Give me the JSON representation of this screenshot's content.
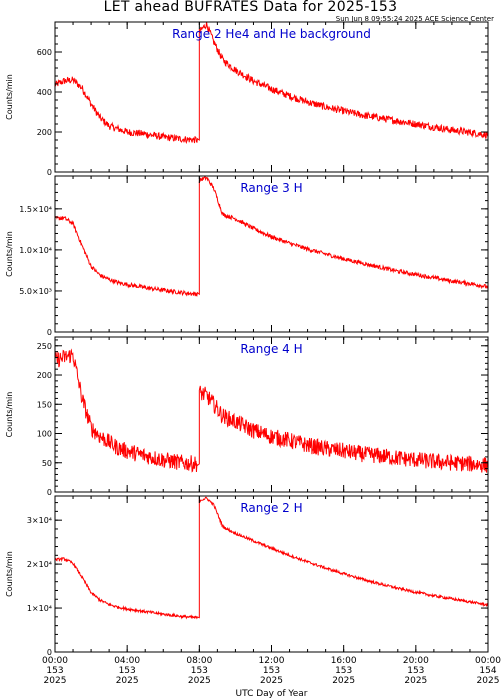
{
  "title": "LET ahead BUFRATES Data for 2025-153",
  "timestamp": "Sun Jun  8 09:55:24 2025 ACE Science Center",
  "colors": {
    "trace": "#ff0000",
    "panel_label": "#0000cc",
    "axis": "#000000"
  },
  "chart_data": {
    "type": "line",
    "xlabel": "UTC Day of Year",
    "x_range_hours": [
      0,
      24
    ],
    "x_ticks": [
      {
        "hour": 0,
        "time": "00:00",
        "doy": "153",
        "year": "2025"
      },
      {
        "hour": 4,
        "time": "04:00",
        "doy": "153",
        "year": "2025"
      },
      {
        "hour": 8,
        "time": "08:00",
        "doy": "153",
        "year": "2025"
      },
      {
        "hour": 12,
        "time": "12:00",
        "doy": "153",
        "year": "2025"
      },
      {
        "hour": 16,
        "time": "16:00",
        "doy": "153",
        "year": "2025"
      },
      {
        "hour": 20,
        "time": "20:00",
        "doy": "153",
        "year": "2025"
      },
      {
        "hour": 24,
        "time": "00:00",
        "doy": "154",
        "year": "2025"
      }
    ],
    "panels": [
      {
        "label": "Range 2 He4 and He background",
        "ylabel": "Counts/min",
        "ylim": [
          0,
          750
        ],
        "yticks": [
          {
            "value": 0,
            "label": "0"
          },
          {
            "value": 200,
            "label": "200"
          },
          {
            "value": 400,
            "label": "400"
          },
          {
            "value": 600,
            "label": "600"
          }
        ],
        "series": {
          "x": [
            0,
            0.5,
            1,
            1.5,
            2,
            2.5,
            3,
            3.5,
            4,
            5,
            6,
            7,
            7.9,
            8.0,
            8.4,
            8.8,
            9.3,
            10,
            11,
            12,
            13,
            14,
            15,
            16,
            17,
            18,
            19,
            20,
            21,
            22,
            23,
            24
          ],
          "y": [
            435,
            455,
            460,
            420,
            340,
            270,
            230,
            215,
            200,
            190,
            175,
            165,
            160,
            700,
            740,
            650,
            560,
            510,
            455,
            415,
            380,
            350,
            325,
            305,
            285,
            270,
            255,
            240,
            225,
            210,
            198,
            185
          ],
          "noise": 18
        }
      },
      {
        "label": "Range 3 H",
        "ylabel": "Counts/min",
        "ylim": [
          0,
          19000
        ],
        "yticks": [
          {
            "value": 0,
            "label": "0"
          },
          {
            "value": 5000,
            "label": "5.0×10³"
          },
          {
            "value": 10000,
            "label": "1.0×10⁴"
          },
          {
            "value": 15000,
            "label": "1.5×10⁴"
          }
        ],
        "series": {
          "x": [
            0,
            0.5,
            1,
            1.5,
            2,
            2.5,
            3,
            3.5,
            4,
            5,
            6,
            7,
            7.9,
            8.0,
            8.4,
            8.8,
            9.3,
            10,
            11,
            12,
            13,
            14,
            15,
            16,
            17,
            18,
            19,
            20,
            21,
            22,
            23,
            24
          ],
          "y": [
            13800,
            13900,
            13200,
            10500,
            8000,
            6900,
            6400,
            6000,
            5800,
            5400,
            5100,
            4800,
            4600,
            18500,
            18800,
            17500,
            14300,
            13800,
            12600,
            11600,
            10800,
            10100,
            9500,
            8900,
            8400,
            7900,
            7400,
            7000,
            6600,
            6200,
            5900,
            5500
          ],
          "noise": 250
        }
      },
      {
        "label": "Range 4 H",
        "ylabel": "Counts/min",
        "ylim": [
          0,
          265
        ],
        "yticks": [
          {
            "value": 0,
            "label": "0"
          },
          {
            "value": 50,
            "label": "50"
          },
          {
            "value": 100,
            "label": "100"
          },
          {
            "value": 150,
            "label": "150"
          },
          {
            "value": 200,
            "label": "200"
          },
          {
            "value": 250,
            "label": "250"
          }
        ],
        "series": {
          "x": [
            0,
            0.5,
            1,
            1.5,
            2,
            2.5,
            3,
            3.5,
            4,
            5,
            6,
            7,
            7.9,
            8.0,
            8.4,
            8.8,
            9.3,
            10,
            11,
            12,
            13,
            14,
            15,
            16,
            17,
            18,
            19,
            20,
            21,
            22,
            23,
            24
          ],
          "y": [
            225,
            230,
            235,
            160,
            110,
            95,
            85,
            75,
            70,
            62,
            55,
            50,
            48,
            170,
            165,
            150,
            130,
            120,
            105,
            95,
            88,
            80,
            74,
            70,
            65,
            62,
            58,
            55,
            52,
            50,
            48,
            46
          ],
          "noise": 14
        }
      },
      {
        "label": "Range 2 H",
        "ylabel": "Counts/min",
        "ylim": [
          0,
          35500
        ],
        "yticks": [
          {
            "value": 0,
            "label": "0"
          },
          {
            "value": 10000,
            "label": "1×10⁴"
          },
          {
            "value": 20000,
            "label": "2×10⁴"
          },
          {
            "value": 30000,
            "label": "3×10⁴"
          }
        ],
        "series": {
          "x": [
            0,
            0.5,
            1,
            1.5,
            2,
            2.5,
            3,
            3.5,
            4,
            5,
            6,
            7,
            7.9,
            8.0,
            8.4,
            8.8,
            9.3,
            10,
            11,
            12,
            13,
            14,
            15,
            16,
            17,
            18,
            19,
            20,
            21,
            22,
            23,
            24
          ],
          "y": [
            21000,
            21200,
            20200,
            17000,
            13500,
            11800,
            10800,
            10200,
            9800,
            9200,
            8600,
            8100,
            7800,
            34500,
            35000,
            33500,
            28500,
            27000,
            25300,
            23600,
            22000,
            20500,
            19100,
            17800,
            16600,
            15500,
            14500,
            13600,
            12800,
            12100,
            11400,
            10700
          ],
          "noise": 300
        }
      }
    ]
  }
}
